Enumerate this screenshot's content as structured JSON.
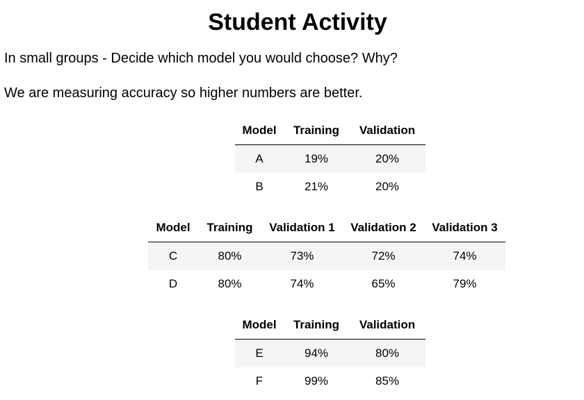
{
  "title": "Student Activity",
  "paragraphs": [
    "In small groups - Decide which model you would choose? Why?",
    "We are measuring accuracy so higher numbers are better."
  ],
  "tables": [
    {
      "headers": [
        "Model",
        "Training",
        "Validation"
      ],
      "rows": [
        [
          "A",
          "19%",
          "20%"
        ],
        [
          "B",
          "21%",
          "20%"
        ]
      ]
    },
    {
      "headers": [
        "Model",
        "Training",
        "Validation 1",
        "Validation 2",
        "Validation 3"
      ],
      "rows": [
        [
          "C",
          "80%",
          "73%",
          "72%",
          "74%"
        ],
        [
          "D",
          "80%",
          "74%",
          "65%",
          "79%"
        ]
      ]
    },
    {
      "headers": [
        "Model",
        "Training",
        "Validation"
      ],
      "rows": [
        [
          "E",
          "94%",
          "80%"
        ],
        [
          "F",
          "99%",
          "85%"
        ]
      ]
    }
  ]
}
